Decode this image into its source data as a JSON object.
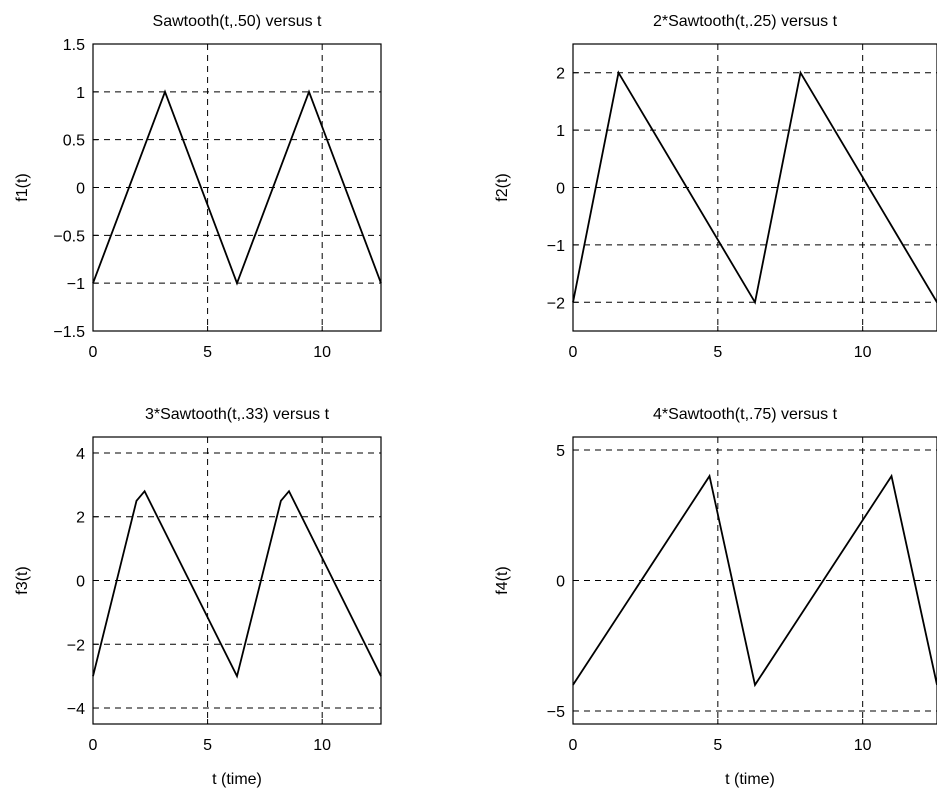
{
  "chart_data": [
    {
      "type": "line",
      "title": "Sawtooth(t,.50) versus t",
      "xlabel": "",
      "ylabel": "f1(t)",
      "xlim": [
        0,
        12.566
      ],
      "ylim": [
        -1.5,
        1.5
      ],
      "xticks": [
        0,
        5,
        10
      ],
      "xtick_labels": [
        "0",
        "5",
        "10"
      ],
      "yticks": [
        -1.5,
        -1,
        -0.5,
        0,
        0.5,
        1,
        1.5
      ],
      "ytick_labels": [
        "−1.5",
        "−1",
        "−0.5",
        "0",
        "0.5",
        "1",
        "1.5"
      ],
      "grid": true,
      "series": [
        {
          "x": [
            0,
            3.1416,
            6.2832,
            9.4248,
            12.566
          ],
          "y": [
            -1,
            1,
            -1,
            1,
            -1
          ]
        }
      ]
    },
    {
      "type": "line",
      "title": "2*Sawtooth(t,.25) versus t",
      "xlabel": "",
      "ylabel": "f2(t)",
      "xlim": [
        0,
        12.566
      ],
      "ylim": [
        -2.5,
        2.5
      ],
      "xticks": [
        0,
        5,
        10
      ],
      "xtick_labels": [
        "0",
        "5",
        "10"
      ],
      "yticks": [
        -2,
        -1,
        0,
        1,
        2
      ],
      "ytick_labels": [
        "−2",
        "−1",
        "0",
        "1",
        "2"
      ],
      "grid": true,
      "series": [
        {
          "x": [
            0,
            1.5708,
            6.2832,
            7.854,
            12.566
          ],
          "y": [
            -2,
            2,
            -2,
            2,
            -2
          ]
        }
      ]
    },
    {
      "type": "line",
      "title": "3*Sawtooth(t,.33) versus t",
      "xlabel": "t (time)",
      "ylabel": "f3(t)",
      "xlim": [
        0,
        12.566
      ],
      "ylim": [
        -4.5,
        4.5
      ],
      "xticks": [
        0,
        5,
        10
      ],
      "xtick_labels": [
        "0",
        "5",
        "10"
      ],
      "yticks": [
        -4,
        -2,
        0,
        2,
        4
      ],
      "ytick_labels": [
        "−4",
        "−2",
        "0",
        "2",
        "4"
      ],
      "grid": true,
      "series": [
        {
          "x": [
            0,
            1.9,
            2.25,
            6.2832,
            8.2,
            8.55,
            12.566
          ],
          "y": [
            -3,
            2.5,
            2.8,
            -3,
            2.5,
            2.8,
            -3
          ]
        }
      ]
    },
    {
      "type": "line",
      "title": "4*Sawtooth(t,.75) versus t",
      "xlabel": "t (time)",
      "ylabel": "f4(t)",
      "xlim": [
        0,
        12.566
      ],
      "ylim": [
        -5.5,
        5.5
      ],
      "xticks": [
        0,
        5,
        10
      ],
      "xtick_labels": [
        "0",
        "5",
        "10"
      ],
      "yticks": [
        -5,
        0,
        5
      ],
      "ytick_labels": [
        "−5",
        "0",
        "5"
      ],
      "grid": true,
      "series": [
        {
          "x": [
            0,
            4.7124,
            6.2832,
            10.9956,
            12.566
          ],
          "y": [
            -4,
            4,
            -4,
            4,
            -4
          ]
        }
      ]
    }
  ]
}
